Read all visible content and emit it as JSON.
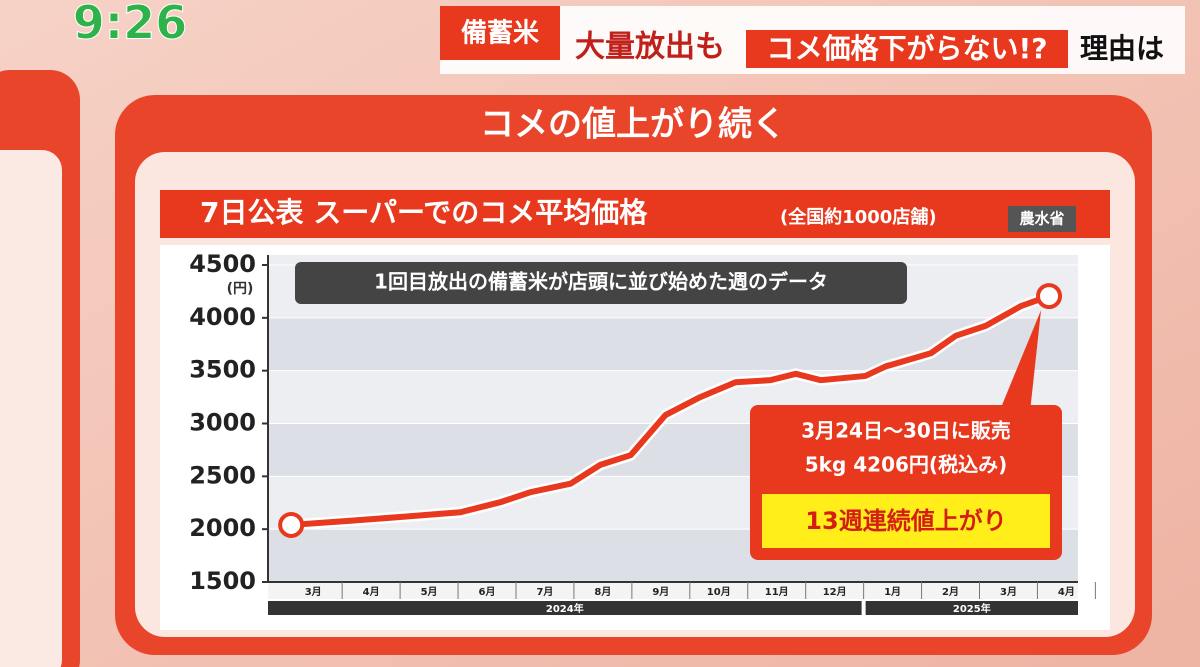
{
  "header": {
    "clock": "9:26",
    "tag": "備蓄米",
    "headline_1": "大量放出も",
    "headline_2": "コメ価格下がらない!?",
    "headline_3": "理由は"
  },
  "panel_title": "コメの値上がり続く",
  "chart_data": {
    "type": "line",
    "title": "7日公表 スーパーでのコメ平均価格",
    "subtitle": "(全国約1000店舗)",
    "source": "農水省",
    "y_unit": "(円)",
    "annotation": "1回目放出の備蓄米が店頭に並び始めた週のデータ",
    "callout": [
      "3月24日～30日に販売",
      "5kg 4206円(税込み)"
    ],
    "highlight": "13週連続値上がり",
    "x": [
      0.12,
      1.14,
      2.0,
      3.04,
      3.73,
      4.25,
      4.94,
      5.46,
      5.98,
      6.58,
      7.18,
      7.79,
      8.39,
      8.83,
      9.26,
      10.03,
      10.38,
      11.16,
      11.59,
      12.11,
      12.71,
      13.2
    ],
    "series": [
      {
        "color": "#e8381e",
        "values": [
          2040,
          2080,
          2115,
          2160,
          2255,
          2350,
          2430,
          2610,
          2700,
          3080,
          3250,
          3390,
          3410,
          3470,
          3410,
          3450,
          3540,
          3665,
          3830,
          3925,
          4110,
          4206
        ]
      }
    ],
    "xlim": [
      -0.28,
      13.7
    ],
    "ylim": [
      1500,
      4500
    ],
    "yticks": [
      1500,
      2000,
      2500,
      3000,
      3500,
      4000,
      4500
    ],
    "xticks": [
      {
        "value": 0.5,
        "label": "3月"
      },
      {
        "value": 1.5,
        "label": "4月"
      },
      {
        "value": 2.5,
        "label": "5月"
      },
      {
        "value": 3.5,
        "label": "6月"
      },
      {
        "value": 4.5,
        "label": "7月"
      },
      {
        "value": 5.5,
        "label": "8月"
      },
      {
        "value": 6.5,
        "label": "9月"
      },
      {
        "value": 7.5,
        "label": "10月"
      },
      {
        "value": 8.5,
        "label": "11月"
      },
      {
        "value": 9.5,
        "label": "12月"
      },
      {
        "value": 10.5,
        "label": "1月"
      },
      {
        "value": 11.5,
        "label": "2月"
      },
      {
        "value": 12.5,
        "label": "3月"
      },
      {
        "value": 13.5,
        "label": "4月"
      }
    ],
    "year_labels": [
      "2024年",
      "2025年"
    ]
  }
}
